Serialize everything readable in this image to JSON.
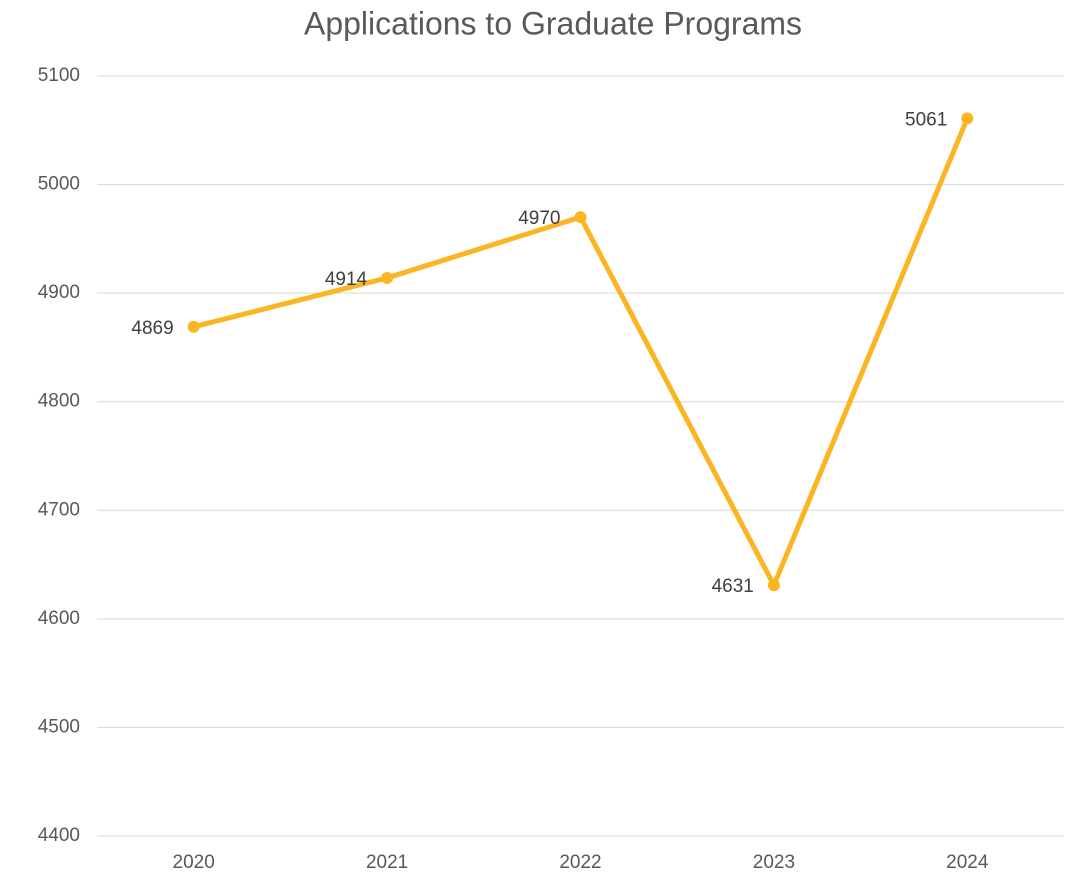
{
  "chart_data": {
    "type": "line",
    "title": "Applications to Graduate Programs",
    "categories": [
      "2020",
      "2021",
      "2022",
      "2023",
      "2024"
    ],
    "values": [
      4869,
      4914,
      4970,
      4631,
      5061
    ],
    "color": "#fbb422",
    "ylim": [
      4400,
      5100
    ],
    "yticks": [
      4400,
      4500,
      4600,
      4700,
      4800,
      4900,
      5000,
      5100
    ],
    "grid": true
  }
}
